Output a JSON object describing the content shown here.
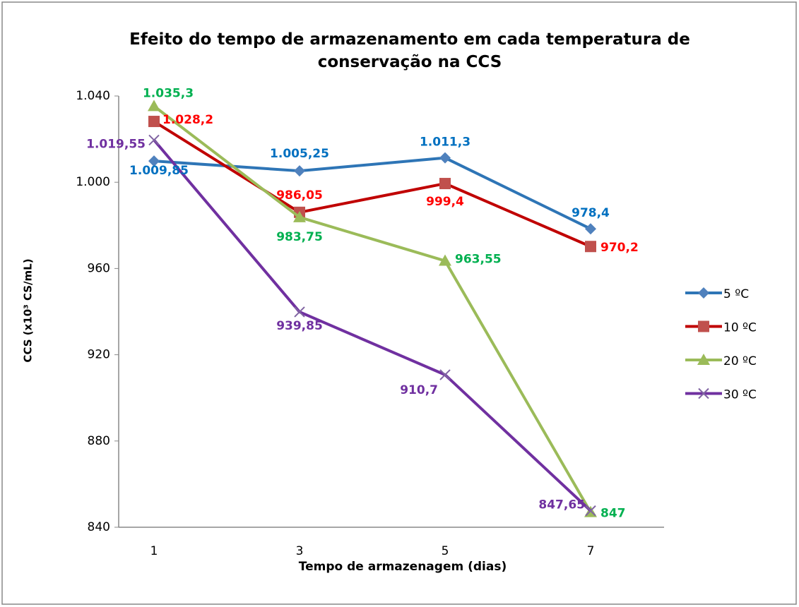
{
  "chart_data": {
    "type": "line",
    "title": "Efeito do tempo de armazenamento em cada temperatura de conservação na CCS",
    "x_label": "Tempo de armazenagem  (dias)",
    "y_label": "CCS (x10³ CS/mL)",
    "categories": [
      "1",
      "3",
      "5",
      "7"
    ],
    "ylim": [
      840,
      1040
    ],
    "yticks": [
      840,
      880,
      920,
      960,
      {
        "value": 1000,
        "label": "1.000"
      },
      {
        "value": 1040,
        "label": "1.040"
      }
    ],
    "grid": false,
    "legend": "right",
    "series": [
      {
        "name": "5 ºC",
        "color": "#2e75b6",
        "marker_color": "#4f81bd",
        "label_color": "#0070c0",
        "marker": "diamond",
        "values": [
          1009.85,
          1005.25,
          1011.3,
          978.4
        ],
        "value_labels": [
          "1.009,85",
          "1.005,25",
          "1.011,3",
          "978,4"
        ]
      },
      {
        "name": "10 ºC",
        "color": "#c00000",
        "marker_color": "#c0504d",
        "label_color": "#ff0000",
        "marker": "square",
        "values": [
          1028.2,
          986.05,
          999.4,
          970.2
        ],
        "value_labels": [
          "1.028,2",
          "986,05",
          "999,4",
          "970,2"
        ]
      },
      {
        "name": "20 ºC",
        "color": "#9bbb59",
        "marker_color": "#9bbb59",
        "label_color": "#00b050",
        "marker": "triangle",
        "values": [
          1035.3,
          983.75,
          963.55,
          847
        ],
        "value_labels": [
          "1.035,3",
          "983,75",
          "963,55",
          "847"
        ]
      },
      {
        "name": "30 ºC",
        "color": "#7030a0",
        "marker_color": "#8064a2",
        "label_color": "#7030a0",
        "marker": "x",
        "values": [
          1019.55,
          939.85,
          910.7,
          847.65
        ],
        "value_labels": [
          "1.019,55",
          "939,85",
          "910,7",
          "847,65"
        ]
      }
    ]
  }
}
